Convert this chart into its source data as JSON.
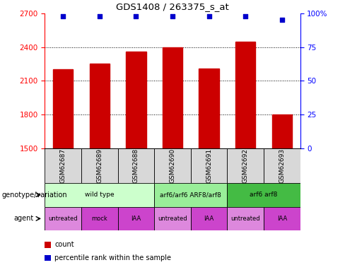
{
  "title": "GDS1408 / 263375_s_at",
  "samples": [
    "GSM62687",
    "GSM62689",
    "GSM62688",
    "GSM62690",
    "GSM62691",
    "GSM62692",
    "GSM62693"
  ],
  "bar_values": [
    2200,
    2250,
    2360,
    2400,
    2210,
    2450,
    1800
  ],
  "percentile_values": [
    98,
    98,
    98,
    98,
    98,
    98,
    95
  ],
  "bar_color": "#cc0000",
  "dot_color": "#0000cc",
  "ylim_left": [
    1500,
    2700
  ],
  "ylim_right": [
    0,
    100
  ],
  "yticks_left": [
    1500,
    1800,
    2100,
    2400,
    2700
  ],
  "yticks_right": [
    0,
    25,
    50,
    75,
    100
  ],
  "grid_values": [
    1800,
    2100,
    2400
  ],
  "genotype_groups": [
    {
      "label": "wild type",
      "start": 0,
      "end": 3,
      "color": "#ccffcc"
    },
    {
      "label": "arf6/arf6 ARF8/arf8",
      "start": 3,
      "end": 5,
      "color": "#99ee99"
    },
    {
      "label": "arf6 arf8",
      "start": 5,
      "end": 7,
      "color": "#44bb44"
    }
  ],
  "agent_labels": [
    "untreated",
    "mock",
    "IAA",
    "untreated",
    "IAA",
    "untreated",
    "IAA"
  ],
  "agent_colors": [
    "#dd88dd",
    "#cc44cc",
    "#cc44cc",
    "#dd88dd",
    "#cc44cc",
    "#dd88dd",
    "#cc44cc"
  ],
  "left_label_genotype": "genotype/variation",
  "left_label_agent": "agent",
  "bar_color_legend": "#cc0000",
  "dot_color_legend": "#0000cc",
  "legend_count": "count",
  "legend_percentile": "percentile rank within the sample"
}
